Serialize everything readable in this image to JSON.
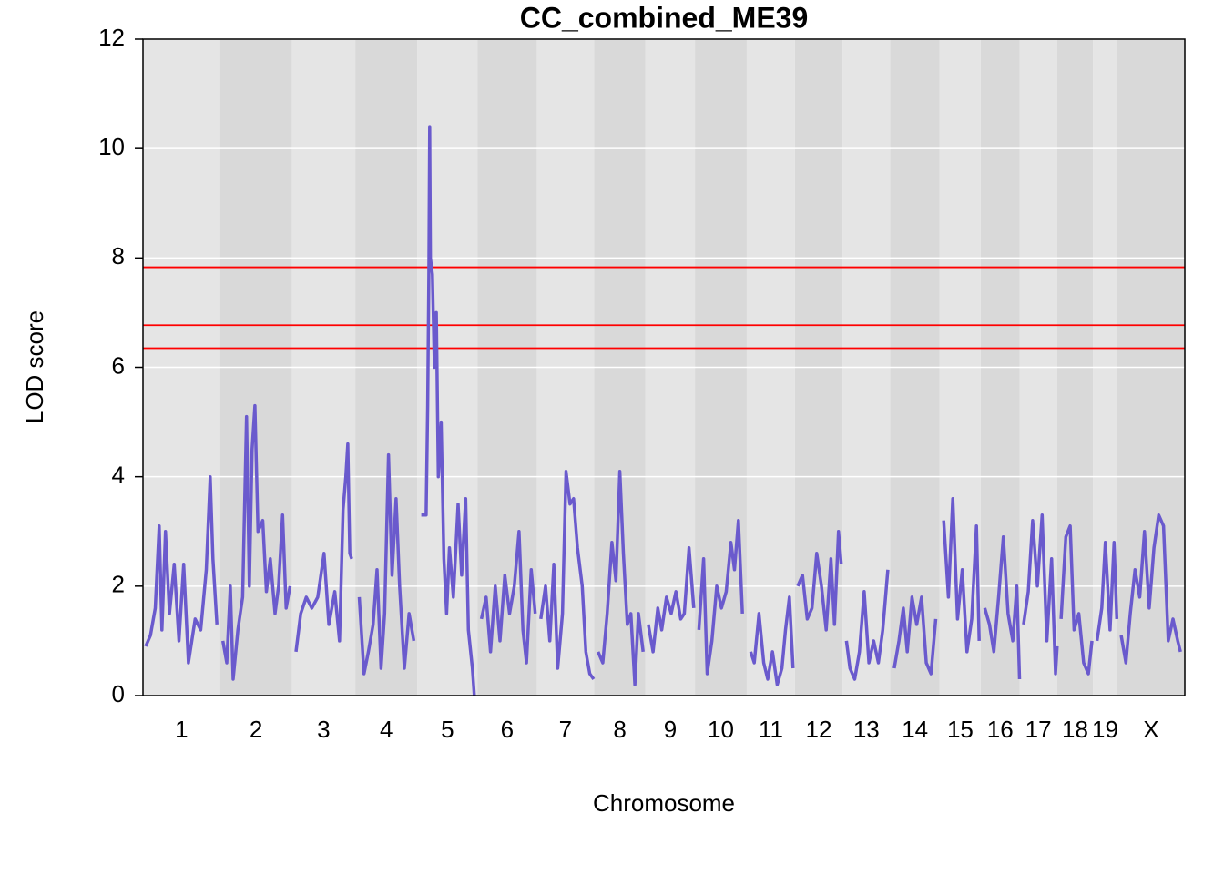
{
  "chart_data": {
    "type": "line",
    "title": "CC_combined_ME39",
    "x_label": "Chromosome",
    "y_label": "LOD score",
    "color": "#6a5acd",
    "threshold_color": "#ff0000",
    "thresholds": [
      7.83,
      6.77,
      6.35
    ],
    "ylim": [
      0,
      12
    ],
    "yticks": [
      0,
      2,
      4,
      6,
      8,
      10,
      12
    ],
    "grid": true,
    "chromosomes": [
      {
        "name": "1",
        "length": 195,
        "x": [
          7,
          19,
          31,
          41,
          48,
          57,
          67,
          79,
          91,
          103,
          115,
          132,
          146,
          160,
          170,
          177,
          187
        ],
        "values": [
          0.9,
          1.1,
          1.6,
          3.1,
          1.2,
          3.0,
          1.5,
          2.4,
          1.0,
          2.4,
          0.6,
          1.4,
          1.2,
          2.3,
          4.0,
          2.5,
          1.3
        ]
      },
      {
        "name": "2",
        "length": 182,
        "x": [
          7,
          17,
          26,
          33,
          45,
          57,
          67,
          74,
          81,
          88,
          96,
          108,
          117,
          127,
          139,
          148,
          158,
          167,
          177
        ],
        "values": [
          1.0,
          0.6,
          2.0,
          0.3,
          1.2,
          1.8,
          5.1,
          2.0,
          4.5,
          5.3,
          3.0,
          3.2,
          1.9,
          2.5,
          1.5,
          2.0,
          3.3,
          1.6,
          2.0
        ]
      },
      {
        "name": "3",
        "length": 160,
        "x": [
          10,
          22,
          36,
          50,
          65,
          81,
          93,
          108,
          120,
          129,
          136,
          141,
          146,
          151
        ],
        "values": [
          0.8,
          1.5,
          1.8,
          1.6,
          1.8,
          2.6,
          1.3,
          1.9,
          1.0,
          3.4,
          4.0,
          4.6,
          2.6,
          2.5
        ]
      },
      {
        "name": "4",
        "length": 157,
        "x": [
          10,
          22,
          33,
          45,
          55,
          65,
          74,
          84,
          93,
          103,
          112,
          124,
          136,
          148
        ],
        "values": [
          1.8,
          0.4,
          0.8,
          1.3,
          2.3,
          0.5,
          1.5,
          4.4,
          2.2,
          3.6,
          2.0,
          0.5,
          1.5,
          1.0
        ]
      },
      {
        "name": "5",
        "length": 152,
        "x": [
          10,
          22,
          26,
          29,
          31,
          33,
          38,
          43,
          48,
          53,
          60,
          67,
          74,
          81,
          91,
          103,
          112,
          122,
          129,
          139,
          144
        ],
        "values": [
          3.3,
          3.3,
          5.3,
          7.7,
          10.4,
          8.0,
          7.7,
          6.0,
          7.0,
          4.0,
          5.0,
          2.5,
          1.5,
          2.7,
          1.8,
          3.5,
          2.2,
          3.6,
          1.2,
          0.5,
          0.0
        ]
      },
      {
        "name": "6",
        "length": 150,
        "x": [
          10,
          22,
          33,
          45,
          57,
          69,
          81,
          93,
          105,
          115,
          124,
          136,
          146
        ],
        "values": [
          1.4,
          1.8,
          0.8,
          2.0,
          1.0,
          2.2,
          1.5,
          2.0,
          3.0,
          1.2,
          0.6,
          2.3,
          1.5
        ]
      },
      {
        "name": "7",
        "length": 145,
        "x": [
          10,
          22,
          33,
          43,
          53,
          65,
          74,
          84,
          93,
          103,
          115,
          124,
          134,
          144
        ],
        "values": [
          1.4,
          2.0,
          1.0,
          2.4,
          0.5,
          1.5,
          4.1,
          3.5,
          3.6,
          2.7,
          2.0,
          0.8,
          0.4,
          0.3
        ]
      },
      {
        "name": "8",
        "length": 130,
        "x": [
          10,
          22,
          33,
          45,
          55,
          65,
          74,
          84,
          93,
          103,
          112,
          124
        ],
        "values": [
          0.8,
          0.6,
          1.5,
          2.8,
          2.1,
          4.1,
          2.6,
          1.3,
          1.5,
          0.2,
          1.5,
          0.8
        ]
      },
      {
        "name": "9",
        "length": 125,
        "x": [
          7,
          19,
          31,
          41,
          53,
          65,
          77,
          89,
          98,
          110,
          122
        ],
        "values": [
          1.3,
          0.8,
          1.6,
          1.2,
          1.8,
          1.5,
          1.9,
          1.4,
          1.5,
          2.7,
          1.6
        ]
      },
      {
        "name": "10",
        "length": 131,
        "x": [
          10,
          22,
          31,
          43,
          55,
          67,
          79,
          91,
          100,
          110,
          120
        ],
        "values": [
          1.2,
          2.5,
          0.4,
          1.0,
          2.0,
          1.6,
          1.9,
          2.8,
          2.3,
          3.2,
          1.5
        ]
      },
      {
        "name": "11",
        "length": 122,
        "x": [
          10,
          19,
          31,
          43,
          53,
          65,
          77,
          89,
          98,
          108,
          117
        ],
        "values": [
          0.8,
          0.6,
          1.5,
          0.6,
          0.3,
          0.8,
          0.2,
          0.5,
          1.2,
          1.8,
          0.5
        ]
      },
      {
        "name": "12",
        "length": 120,
        "x": [
          7,
          19,
          31,
          43,
          55,
          67,
          79,
          91,
          100,
          110,
          117
        ],
        "values": [
          2.0,
          2.2,
          1.4,
          1.6,
          2.6,
          2.0,
          1.2,
          2.5,
          1.3,
          3.0,
          2.4
        ]
      },
      {
        "name": "13",
        "length": 121,
        "x": [
          10,
          19,
          31,
          43,
          55,
          67,
          79,
          91,
          102,
          115
        ],
        "values": [
          1.0,
          0.5,
          0.3,
          0.8,
          1.9,
          0.6,
          1.0,
          0.6,
          1.2,
          2.3
        ]
      },
      {
        "name": "14",
        "length": 125,
        "x": [
          10,
          22,
          33,
          43,
          55,
          67,
          79,
          91,
          103,
          115
        ],
        "values": [
          0.5,
          1.0,
          1.6,
          0.8,
          1.8,
          1.3,
          1.8,
          0.6,
          0.4,
          1.4
        ]
      },
      {
        "name": "15",
        "length": 104,
        "x": [
          10,
          22,
          33,
          45,
          57,
          69,
          81,
          93,
          100
        ],
        "values": [
          3.2,
          1.8,
          3.6,
          1.4,
          2.3,
          0.8,
          1.4,
          3.1,
          1.0
        ]
      },
      {
        "name": "16",
        "length": 98,
        "x": [
          10,
          22,
          33,
          45,
          57,
          69,
          81,
          91,
          98
        ],
        "values": [
          1.6,
          1.3,
          0.8,
          1.8,
          2.9,
          1.5,
          1.0,
          2.0,
          0.3
        ]
      },
      {
        "name": "17",
        "length": 95,
        "x": [
          10,
          22,
          33,
          45,
          57,
          69,
          81,
          91,
          95
        ],
        "values": [
          1.3,
          1.9,
          3.2,
          2.0,
          3.3,
          1.0,
          2.5,
          0.4,
          0.9
        ]
      },
      {
        "name": "18",
        "length": 91,
        "x": [
          10,
          22,
          33,
          43,
          55,
          67,
          79,
          88
        ],
        "values": [
          1.4,
          2.9,
          3.1,
          1.2,
          1.5,
          0.6,
          0.4,
          1.0
        ]
      },
      {
        "name": "19",
        "length": 61,
        "x": [
          10,
          22,
          31,
          43,
          53,
          60
        ],
        "values": [
          1.0,
          1.6,
          2.8,
          1.2,
          2.8,
          1.4
        ]
      },
      {
        "name": "X",
        "length": 171,
        "x": [
          10,
          22,
          33,
          45,
          57,
          69,
          81,
          93,
          105,
          117,
          129,
          141,
          153,
          160
        ],
        "values": [
          1.1,
          0.6,
          1.5,
          2.3,
          1.8,
          3.0,
          1.6,
          2.7,
          3.3,
          3.1,
          1.0,
          1.4,
          1.0,
          0.8
        ]
      }
    ]
  }
}
